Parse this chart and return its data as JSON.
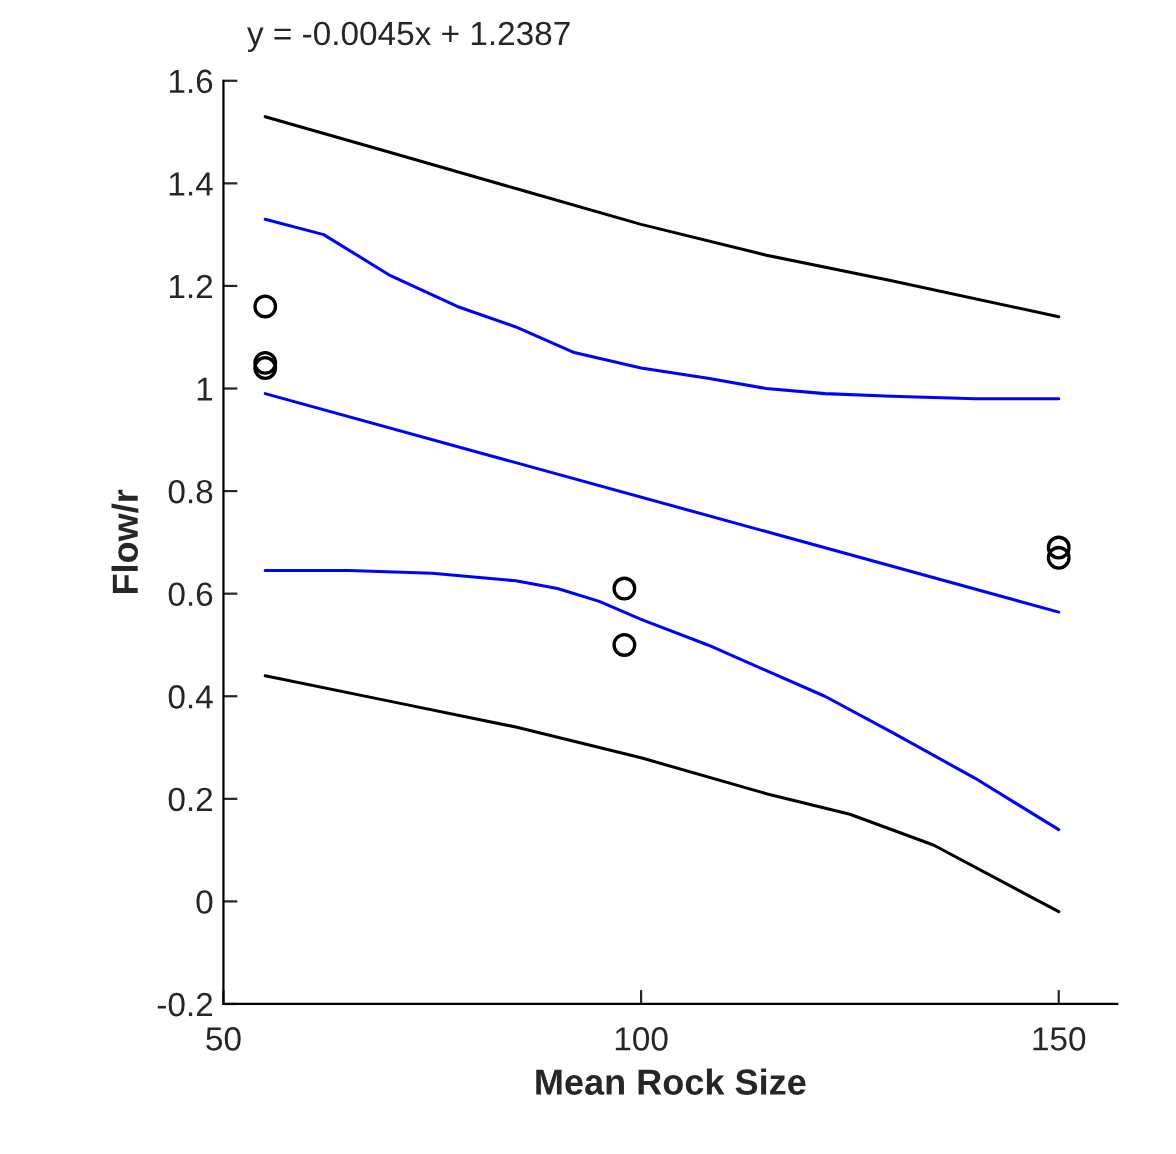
{
  "chart_data": {
    "type": "line",
    "xlabel": "Mean Rock Size",
    "ylabel": "Flow/r",
    "annotations": [
      "y = -0.0045x + 1.2387"
    ],
    "xlim": [
      50,
      157
    ],
    "xticks": [
      50,
      100,
      150
    ],
    "ylim": [
      -0.2,
      1.6
    ],
    "yticks": [
      -0.2,
      0,
      0.2,
      0.4,
      0.6,
      0.8,
      1,
      1.2,
      1.4,
      1.6
    ],
    "grid": false,
    "legend": false,
    "series": [
      {
        "color": "#000000",
        "marker": "none",
        "x": [
          55,
          70,
          85,
          100,
          115,
          130,
          150
        ],
        "values": [
          1.53,
          1.46,
          1.39,
          1.32,
          1.26,
          1.21,
          1.14
        ]
      },
      {
        "color": "#0000ff",
        "marker": "none",
        "x": [
          55,
          62,
          70,
          78,
          85,
          92,
          100,
          108,
          115,
          122,
          130,
          140,
          150
        ],
        "values": [
          1.33,
          1.3,
          1.22,
          1.16,
          1.12,
          1.07,
          1.04,
          1.02,
          1.0,
          0.99,
          0.985,
          0.98,
          0.98
        ]
      },
      {
        "color": "#0000ff",
        "marker": "none",
        "x": [
          55,
          150
        ],
        "values": [
          0.99,
          0.564
        ]
      },
      {
        "color": "#0000ff",
        "marker": "none",
        "x": [
          55,
          65,
          75,
          85,
          90,
          95,
          100,
          108,
          115,
          122,
          130,
          140,
          150
        ],
        "values": [
          0.645,
          0.645,
          0.64,
          0.625,
          0.61,
          0.585,
          0.55,
          0.5,
          0.45,
          0.4,
          0.33,
          0.24,
          0.14
        ]
      },
      {
        "color": "#000000",
        "marker": "none",
        "x": [
          55,
          70,
          85,
          100,
          115,
          125,
          135,
          150
        ],
        "values": [
          0.44,
          0.39,
          0.34,
          0.28,
          0.21,
          0.17,
          0.11,
          -0.02
        ]
      },
      {
        "type": "scatter",
        "color": "#000000",
        "marker": "circle",
        "x": [
          55,
          55,
          55,
          98,
          98,
          150,
          150
        ],
        "values": [
          1.16,
          1.05,
          1.04,
          0.61,
          0.5,
          0.69,
          0.67
        ]
      }
    ]
  }
}
